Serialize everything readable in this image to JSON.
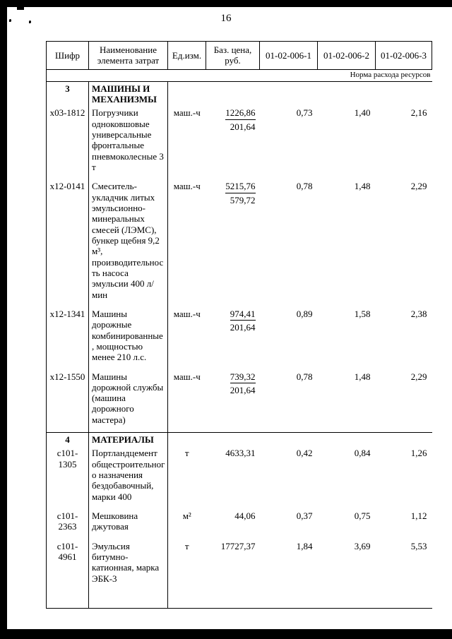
{
  "page": {
    "number": "16"
  },
  "colors": {
    "ink": "#000000",
    "paper": "#ffffff"
  },
  "table": {
    "headers": [
      "Шифр",
      "Наименование элемента затрат",
      "Ед.изм.",
      "Баз. цена, руб.",
      "01-02-006-1",
      "01-02-006-2",
      "01-02-006-3"
    ],
    "subheader": "Норма расхода ресурсов",
    "rows": [
      {
        "type": "section",
        "code": "3",
        "name": "МАШИНЫ И МЕХАНИЗМЫ",
        "unit": "",
        "price_main": "",
        "price_sub": "",
        "v1": "",
        "v2": "",
        "v3": ""
      },
      {
        "type": "item",
        "code": "x03-1812",
        "name": "Погрузчики одноковшовые универсальные фронтальные пневмоколесные 3 т",
        "unit": "маш.-ч",
        "price_main": "1226,86",
        "price_sub": "201,64",
        "v1": "0,73",
        "v2": "1,40",
        "v3": "2,16"
      },
      {
        "type": "item",
        "code": "x12-0141",
        "name": "Смеситель-укладчик литых эмульсионно-минеральных смесей (ЛЭМС), бункер щебня 9,2 м³, производительность насоса эмульсии 400 л/мин",
        "unit": "маш.-ч",
        "price_main": "5215,76",
        "price_sub": "579,72",
        "v1": "0,78",
        "v2": "1,48",
        "v3": "2,29"
      },
      {
        "type": "item",
        "code": "x12-1341",
        "name": "Машины дорожные комбинированные, мощностью менее 210 л.с.",
        "unit": "маш.-ч",
        "price_main": "974,41",
        "price_sub": "201,64",
        "v1": "0,89",
        "v2": "1,58",
        "v3": "2,38"
      },
      {
        "type": "item",
        "code": "x12-1550",
        "name": "Машины дорожной службы (машина дорожного мастера)",
        "unit": "маш.-ч",
        "price_main": "739,32",
        "price_sub": "201,64",
        "v1": "0,78",
        "v2": "1,48",
        "v3": "2,29"
      },
      {
        "type": "section",
        "code": "4",
        "name": "МАТЕРИАЛЫ",
        "unit": "",
        "price_main": "",
        "price_sub": "",
        "v1": "",
        "v2": "",
        "v3": ""
      },
      {
        "type": "item",
        "code": "c101-1305",
        "name": "Портландцемент общестроительного назначения бездобавочный, марки 400",
        "unit": "т",
        "price_main": "4633,31",
        "price_sub": "",
        "v1": "0,42",
        "v2": "0,84",
        "v3": "1,26"
      },
      {
        "type": "item",
        "code": "c101-2363",
        "name": "Мешковина джутовая",
        "unit": "м²",
        "price_main": "44,06",
        "price_sub": "",
        "v1": "0,37",
        "v2": "0,75",
        "v3": "1,12"
      },
      {
        "type": "item",
        "code": "c101-4961",
        "name": "Эмульсия битумно-катионная, марка ЭБК-3",
        "unit": "т",
        "price_main": "17727,37",
        "price_sub": "",
        "v1": "1,84",
        "v2": "3,69",
        "v3": "5,53"
      }
    ]
  }
}
